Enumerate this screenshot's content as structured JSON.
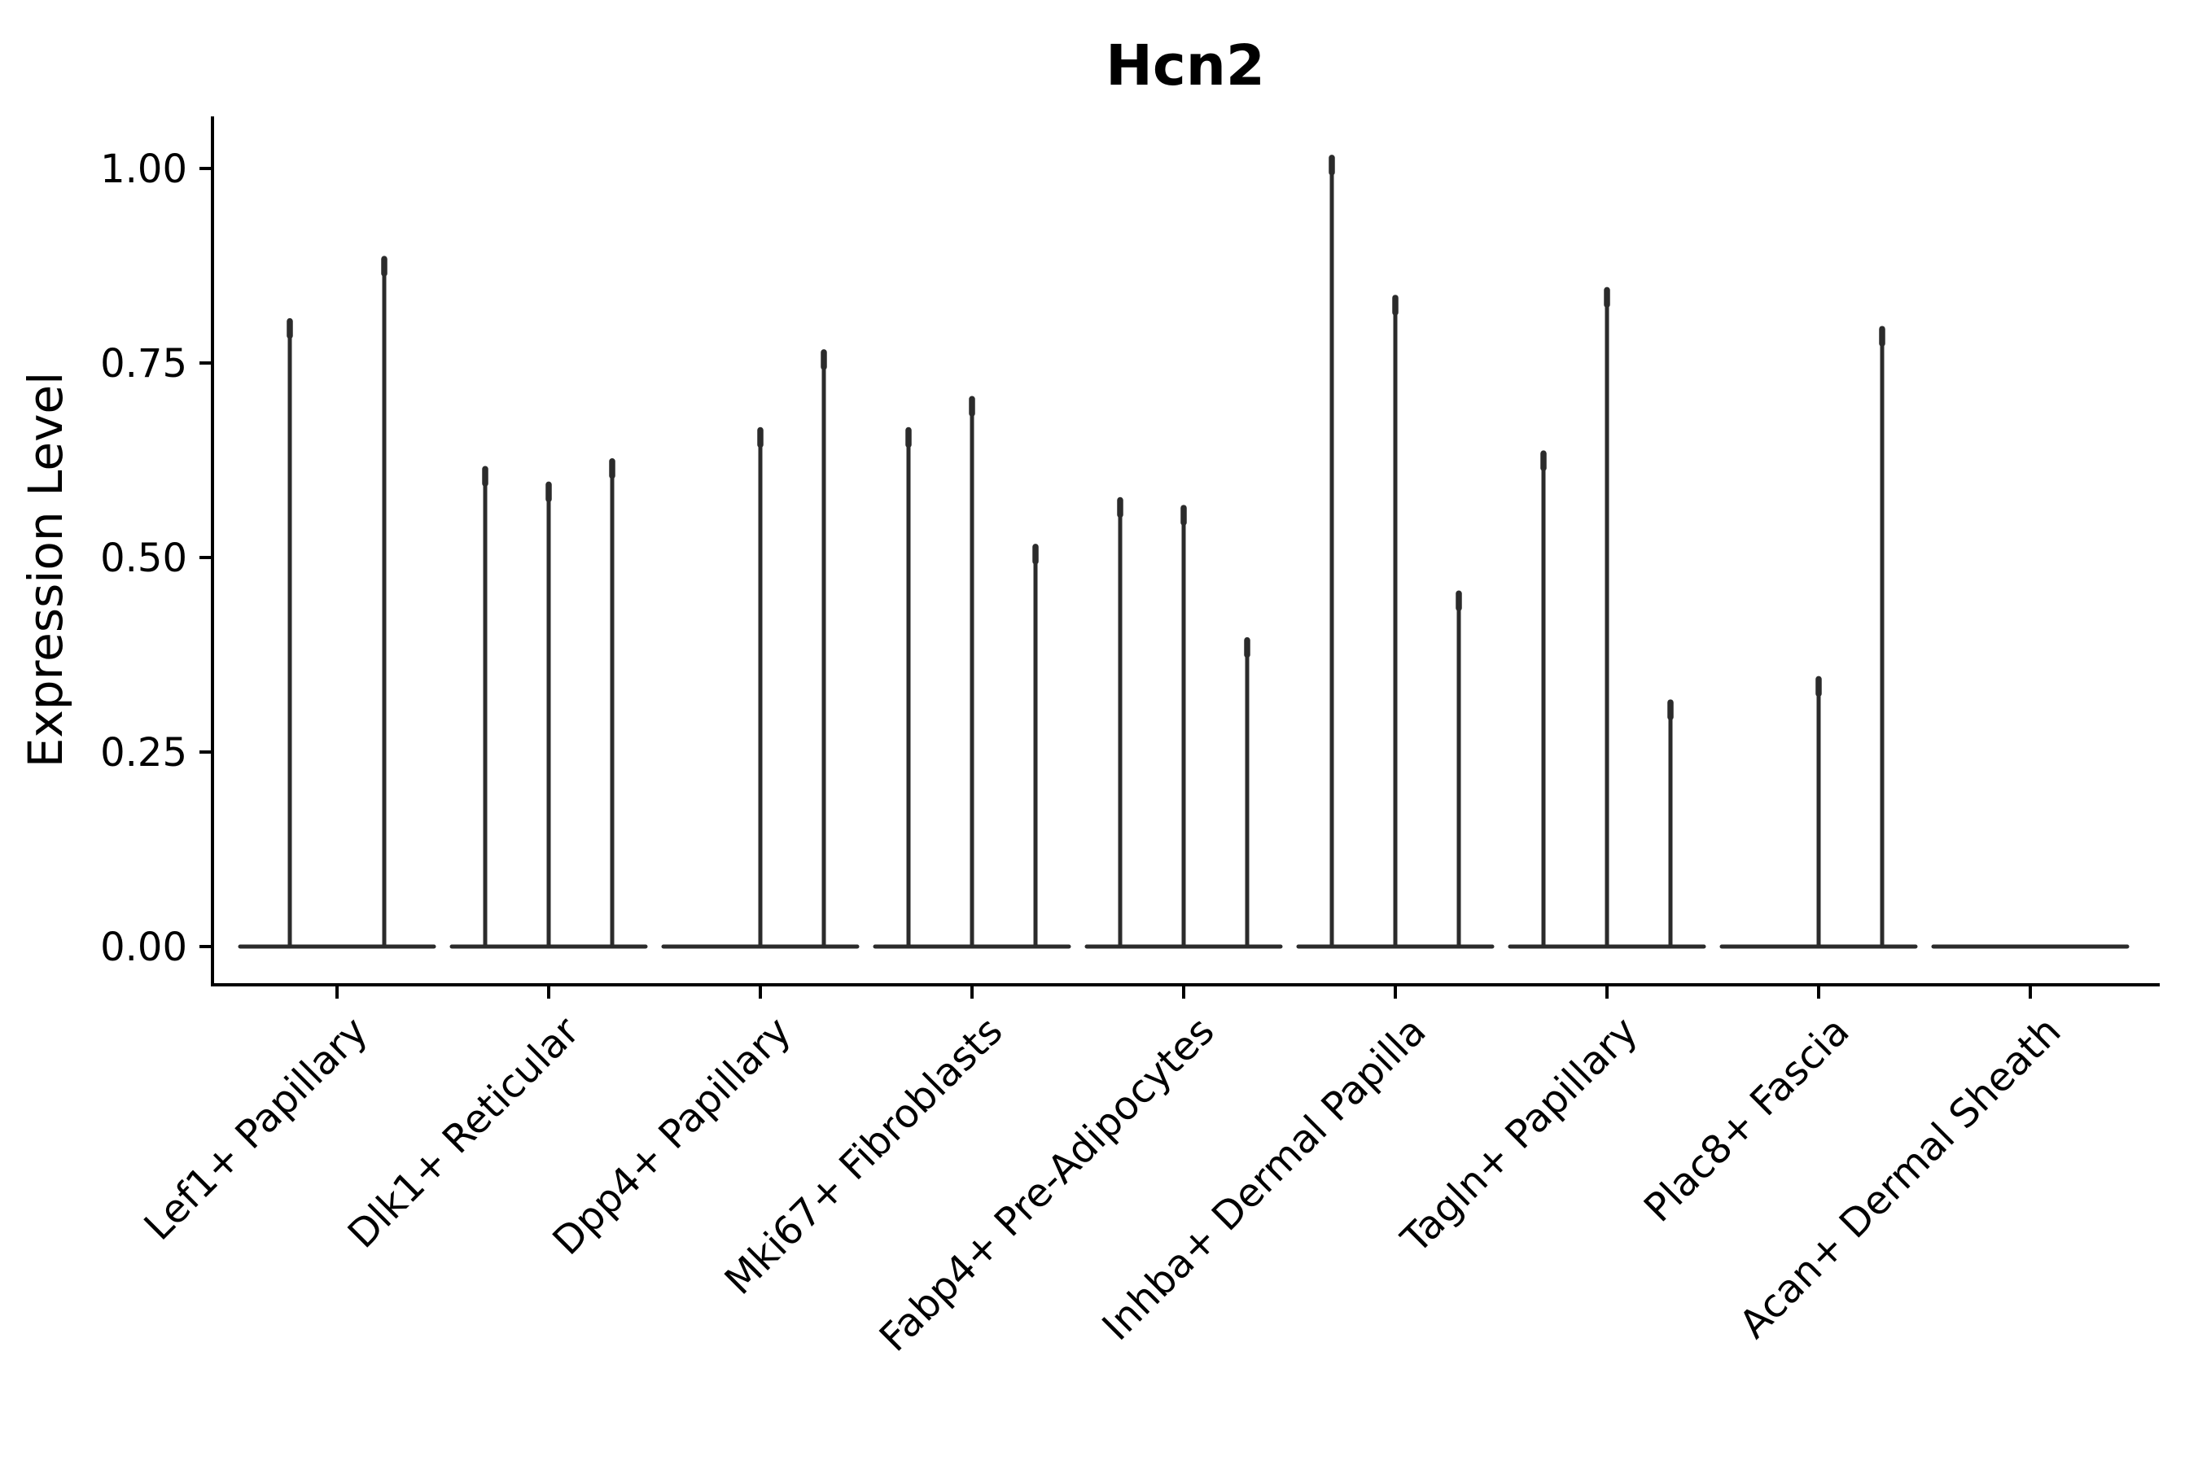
{
  "chart_data": {
    "type": "violin",
    "title": "Hcn2",
    "ylabel": "Expression Level",
    "xlabel": "",
    "ylim": [
      -0.05,
      1.07
    ],
    "grid": false,
    "legend": "none",
    "ink_color": "#2b2b2b",
    "axis_color": "#000000",
    "yticks": {
      "values": [
        0,
        0.25,
        0.5,
        0.75,
        1.0
      ],
      "labels": [
        "0.00",
        "0.25",
        "0.50",
        "0.75",
        "1.00"
      ]
    },
    "categories": [
      {
        "label": "Lef1+ Papillary",
        "violins": [
          {
            "offset": -58,
            "peak": 0.81
          },
          {
            "offset": 58,
            "peak": 0.89
          }
        ]
      },
      {
        "label": "Dlk1+ Reticular",
        "violins": [
          {
            "offset": -78,
            "peak": 0.62
          },
          {
            "offset": 0,
            "peak": 0.6
          },
          {
            "offset": 78,
            "peak": 0.63
          }
        ]
      },
      {
        "label": "Dpp4+ Papillary",
        "violins": [
          {
            "offset": 0,
            "peak": 0.67
          },
          {
            "offset": 78,
            "peak": 0.77
          }
        ]
      },
      {
        "label": "Mki67+ Fibroblasts",
        "violins": [
          {
            "offset": -78,
            "peak": 0.67
          },
          {
            "offset": 0,
            "peak": 0.71
          },
          {
            "offset": 78,
            "peak": 0.52
          }
        ]
      },
      {
        "label": "Fabp4+ Pre-Adipocytes",
        "violins": [
          {
            "offset": -78,
            "peak": 0.58
          },
          {
            "offset": 0,
            "peak": 0.57
          },
          {
            "offset": 78,
            "peak": 0.4
          }
        ]
      },
      {
        "label": "Inhba+ Dermal Papilla",
        "violins": [
          {
            "offset": -78,
            "peak": 1.02
          },
          {
            "offset": 0,
            "peak": 0.84
          },
          {
            "offset": 78,
            "peak": 0.46
          }
        ]
      },
      {
        "label": "Tagln+ Papillary",
        "violins": [
          {
            "offset": -78,
            "peak": 0.64
          },
          {
            "offset": 0,
            "peak": 0.85
          },
          {
            "offset": 78,
            "peak": 0.32
          }
        ]
      },
      {
        "label": "Plac8+ Fascia",
        "violins": [
          {
            "offset": 0,
            "peak": 0.35
          },
          {
            "offset": 78,
            "peak": 0.8
          }
        ]
      },
      {
        "label": "Acan+ Dermal Sheath",
        "violins": []
      }
    ]
  }
}
